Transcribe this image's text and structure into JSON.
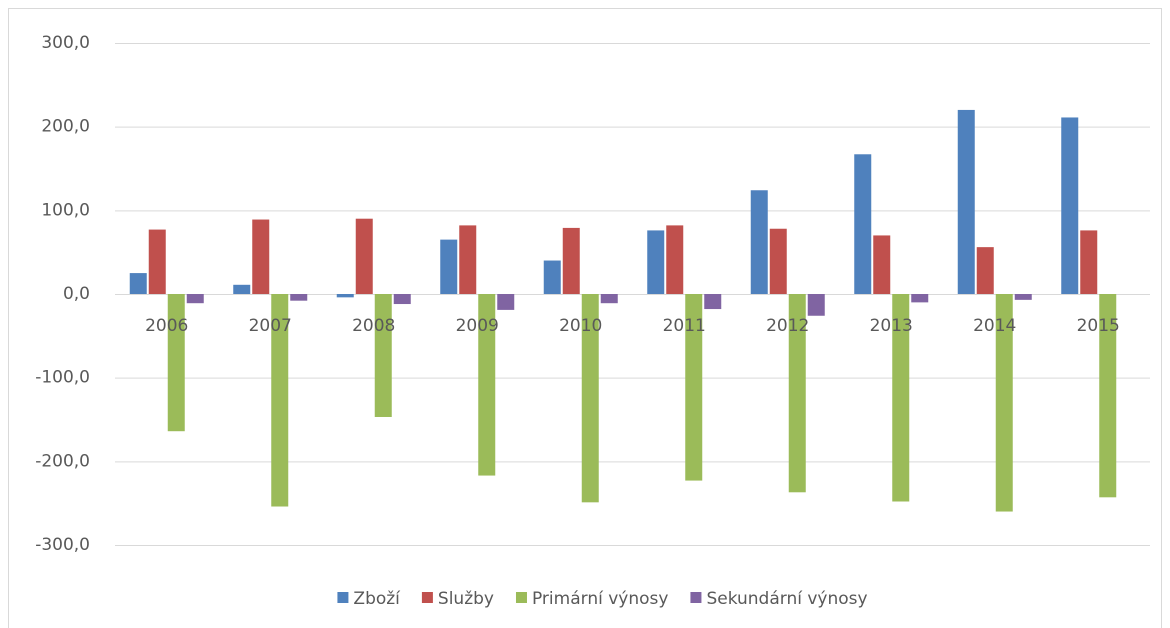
{
  "chart_data": {
    "type": "bar",
    "categories": [
      "2006",
      "2007",
      "2008",
      "2009",
      "2010",
      "2011",
      "2012",
      "2013",
      "2014",
      "2015"
    ],
    "series": [
      {
        "name": "Zboží",
        "color": "#4f81bd",
        "values": [
          25,
          11,
          -4,
          65,
          40,
          76,
          124,
          167,
          220,
          211
        ]
      },
      {
        "name": "Služby",
        "color": "#c0504d",
        "values": [
          77,
          89,
          90,
          82,
          79,
          82,
          78,
          70,
          56,
          76
        ]
      },
      {
        "name": "Primární výnosy",
        "color": "#9bbb59",
        "values": [
          -164,
          -254,
          -147,
          -217,
          -249,
          -223,
          -237,
          -248,
          -260,
          -243
        ]
      },
      {
        "name": "Sekundární výnosy",
        "color": "#8064a2",
        "values": [
          -11,
          -8,
          -12,
          -19,
          -11,
          -18,
          -26,
          -10,
          -7,
          0
        ]
      }
    ],
    "ylim": [
      -300,
      300
    ],
    "yticks": [
      {
        "value": -300,
        "label": "-300,0"
      },
      {
        "value": -200,
        "label": "-200,0"
      },
      {
        "value": -100,
        "label": "-100,0"
      },
      {
        "value": 0,
        "label": "0,0"
      },
      {
        "value": 100,
        "label": "100,0"
      },
      {
        "value": 200,
        "label": "200,0"
      },
      {
        "value": 300,
        "label": "300,0"
      }
    ],
    "grid": true,
    "legend": "bottom"
  }
}
